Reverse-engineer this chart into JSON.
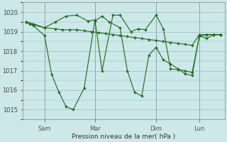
{
  "background_color": "#cce8e8",
  "line_color": "#1a6b1a",
  "grid_color": "#99bbbb",
  "xlabel": "Pression niveau de la mer( hPa )",
  "ylim": [
    1014.5,
    1020.5
  ],
  "xlim": [
    -2,
    110
  ],
  "x_tick_labels": [
    "Sam",
    "Mar",
    "Dim",
    "Lun"
  ],
  "x_tick_positions": [
    10,
    38,
    72,
    96
  ],
  "x_vline_positions": [
    10,
    38,
    72,
    96
  ],
  "series1_x": [
    0,
    2,
    10,
    16,
    20,
    24,
    28,
    32,
    36,
    40,
    44,
    48,
    52,
    56,
    60,
    64,
    68,
    72,
    76,
    80,
    84,
    88,
    92,
    96,
    100,
    104,
    108
  ],
  "series1_y": [
    1019.5,
    1019.4,
    1019.2,
    1019.15,
    1019.1,
    1019.1,
    1019.1,
    1019.05,
    1019.0,
    1018.95,
    1018.9,
    1018.85,
    1018.8,
    1018.75,
    1018.7,
    1018.65,
    1018.6,
    1018.55,
    1018.5,
    1018.45,
    1018.4,
    1018.35,
    1018.3,
    1018.85,
    1018.85,
    1018.85,
    1018.85
  ],
  "series2_x": [
    0,
    4,
    10,
    14,
    18,
    22,
    26,
    32,
    38,
    42,
    46,
    52,
    56,
    60,
    64,
    68,
    72,
    76,
    80,
    84,
    88,
    92,
    96,
    100,
    104,
    108
  ],
  "series2_y": [
    1019.5,
    1019.3,
    1018.8,
    1016.8,
    1015.9,
    1015.15,
    1015.0,
    1016.1,
    1019.55,
    1019.8,
    1019.5,
    1019.2,
    1017.0,
    1015.9,
    1015.7,
    1017.8,
    1018.2,
    1017.55,
    1017.35,
    1017.1,
    1016.85,
    1016.75,
    1018.8,
    1018.65,
    1018.85,
    1018.85
  ],
  "series3_x": [
    0,
    4,
    10,
    16,
    22,
    28,
    34,
    38,
    42,
    48,
    52,
    58,
    62,
    66,
    72,
    76,
    80,
    84,
    88,
    92,
    96,
    100,
    104,
    108
  ],
  "series3_y": [
    1019.5,
    1019.4,
    1019.2,
    1019.5,
    1019.8,
    1019.85,
    1019.55,
    1019.6,
    1017.0,
    1019.85,
    1019.85,
    1019.0,
    1019.15,
    1019.1,
    1019.85,
    1019.15,
    1017.1,
    1017.05,
    1017.0,
    1016.9,
    1018.75,
    1018.85,
    1018.85,
    1018.85
  ]
}
